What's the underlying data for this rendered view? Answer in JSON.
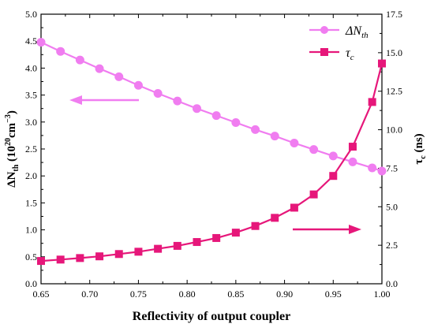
{
  "chart_data": {
    "type": "line",
    "xlabel": "Reflectivity of output coupler",
    "ylabel_left": {
      "base": "ΔN",
      "sub": "th",
      "mid": " (10",
      "sup1": "20",
      "mid2": "cm",
      "sup2": "−3",
      "end": ")"
    },
    "ylabel_right": {
      "base": "τ",
      "sub": "c",
      "end": " (ns)"
    },
    "xlim": [
      0.65,
      1.0
    ],
    "ylim_left": [
      0.0,
      5.0
    ],
    "ylim_right": [
      0.0,
      17.5
    ],
    "x_ticks": [
      "0.65",
      "0.70",
      "0.75",
      "0.80",
      "0.85",
      "0.90",
      "0.95",
      "1.00"
    ],
    "y_left_ticks": [
      "0.0",
      "0.5",
      "1.0",
      "1.5",
      "2.0",
      "2.5",
      "3.0",
      "3.5",
      "4.0",
      "4.5",
      "5.0"
    ],
    "y_right_ticks": [
      "0.0",
      "2.5",
      "5.0",
      "7.5",
      "10.0",
      "12.5",
      "15.0",
      "17.5"
    ],
    "grid": false,
    "legend_position": "top-right",
    "x": [
      0.65,
      0.67,
      0.69,
      0.71,
      0.73,
      0.75,
      0.77,
      0.79,
      0.81,
      0.83,
      0.85,
      0.87,
      0.89,
      0.91,
      0.93,
      0.95,
      0.97,
      0.99,
      1.0
    ],
    "series": [
      {
        "name": "ΔN_th",
        "legend": {
          "base": "ΔN",
          "sub": "th"
        },
        "axis": "left",
        "marker": "circle",
        "color": "#f07df0",
        "values": [
          4.48,
          4.31,
          4.15,
          3.99,
          3.84,
          3.68,
          3.53,
          3.39,
          3.25,
          3.12,
          2.99,
          2.86,
          2.74,
          2.61,
          2.49,
          2.37,
          2.26,
          2.15,
          2.09
        ]
      },
      {
        "name": "τ_c",
        "legend": {
          "base": "τ",
          "sub": "c"
        },
        "axis": "right",
        "marker": "square",
        "color": "#e6177a",
        "values": [
          1.48,
          1.57,
          1.67,
          1.78,
          1.93,
          2.08,
          2.27,
          2.46,
          2.71,
          2.97,
          3.32,
          3.75,
          4.28,
          4.94,
          5.8,
          7.0,
          8.9,
          11.8,
          14.3
        ]
      }
    ],
    "annotations": [
      {
        "type": "arrow",
        "direction": "left",
        "color": "#f07df0",
        "points_to": "left-axis"
      },
      {
        "type": "arrow",
        "direction": "right",
        "color": "#e6177a",
        "points_to": "right-axis"
      }
    ]
  }
}
